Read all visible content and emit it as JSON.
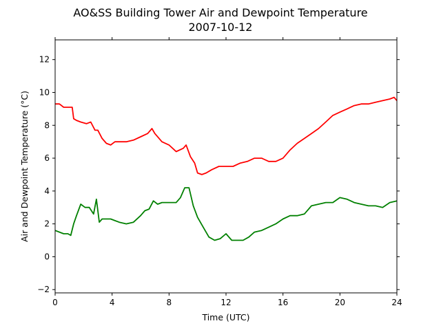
{
  "chart_data": {
    "type": "line",
    "title": "AO&SS Building Tower Air and Dewpoint Temperature",
    "subtitle": "2007-10-12",
    "xlabel": "Time (UTC)",
    "ylabel": "Air and Dewpoint Temperature (°C)",
    "xlim": [
      0,
      24
    ],
    "ylim": [
      -2.2,
      13.2
    ],
    "xticks": [
      0,
      4,
      8,
      12,
      16,
      20,
      24
    ],
    "yticks": [
      -2,
      0,
      2,
      4,
      6,
      8,
      10,
      12
    ],
    "grid": false,
    "series": [
      {
        "color": "#ff0000",
        "x": [
          0,
          0.3,
          0.6,
          1.0,
          1.2,
          1.3,
          1.5,
          1.8,
          2.2,
          2.5,
          2.8,
          3.0,
          3.3,
          3.6,
          3.9,
          4.2,
          4.5,
          5.0,
          5.5,
          6.0,
          6.5,
          6.8,
          7.0,
          7.5,
          8.0,
          8.5,
          9.0,
          9.2,
          9.5,
          9.8,
          10.0,
          10.3,
          10.6,
          11.0,
          11.5,
          12.0,
          12.5,
          13.0,
          13.5,
          14.0,
          14.5,
          15.0,
          15.5,
          16.0,
          16.5,
          17.0,
          17.5,
          18.0,
          18.5,
          19.0,
          19.5,
          20.0,
          20.5,
          21.0,
          21.5,
          22.0,
          22.5,
          23.0,
          23.5,
          23.8,
          24.0
        ],
        "y": [
          9.3,
          9.3,
          9.1,
          9.1,
          9.1,
          8.4,
          8.3,
          8.2,
          8.1,
          8.2,
          7.7,
          7.7,
          7.2,
          6.9,
          6.8,
          7.0,
          7.0,
          7.0,
          7.1,
          7.3,
          7.5,
          7.8,
          7.5,
          7.0,
          6.8,
          6.4,
          6.6,
          6.8,
          6.1,
          5.7,
          5.1,
          5.0,
          5.1,
          5.3,
          5.5,
          5.5,
          5.5,
          5.7,
          5.8,
          6.0,
          6.0,
          5.8,
          5.8,
          6.0,
          6.5,
          6.9,
          7.2,
          7.5,
          7.8,
          8.2,
          8.6,
          8.8,
          9.0,
          9.2,
          9.3,
          9.3,
          9.4,
          9.5,
          9.6,
          9.7,
          9.5
        ]
      },
      {
        "color": "#008000",
        "x": [
          0,
          0.3,
          0.6,
          0.9,
          1.1,
          1.3,
          1.5,
          1.8,
          2.1,
          2.4,
          2.7,
          2.9,
          3.1,
          3.3,
          3.6,
          3.9,
          4.2,
          4.5,
          5.0,
          5.5,
          6.0,
          6.3,
          6.6,
          6.9,
          7.2,
          7.5,
          8.0,
          8.5,
          8.8,
          9.1,
          9.4,
          9.7,
          10.0,
          10.4,
          10.8,
          11.2,
          11.6,
          12.0,
          12.4,
          12.8,
          13.2,
          13.6,
          14.0,
          14.5,
          15.0,
          15.5,
          16.0,
          16.5,
          17.0,
          17.5,
          18.0,
          18.5,
          19.0,
          19.5,
          20.0,
          20.5,
          21.0,
          21.5,
          22.0,
          22.5,
          23.0,
          23.5,
          24.0
        ],
        "y": [
          1.6,
          1.5,
          1.4,
          1.4,
          1.3,
          2.0,
          2.5,
          3.2,
          3.0,
          3.0,
          2.6,
          3.5,
          2.1,
          2.3,
          2.3,
          2.3,
          2.2,
          2.1,
          2.0,
          2.1,
          2.5,
          2.8,
          2.9,
          3.4,
          3.2,
          3.3,
          3.3,
          3.3,
          3.6,
          4.2,
          4.2,
          3.1,
          2.4,
          1.8,
          1.2,
          1.0,
          1.1,
          1.4,
          1.0,
          1.0,
          1.0,
          1.2,
          1.5,
          1.6,
          1.8,
          2.0,
          2.3,
          2.5,
          2.5,
          2.6,
          3.1,
          3.2,
          3.3,
          3.3,
          3.6,
          3.5,
          3.3,
          3.2,
          3.1,
          3.1,
          3.0,
          3.3,
          3.4
        ]
      }
    ]
  }
}
